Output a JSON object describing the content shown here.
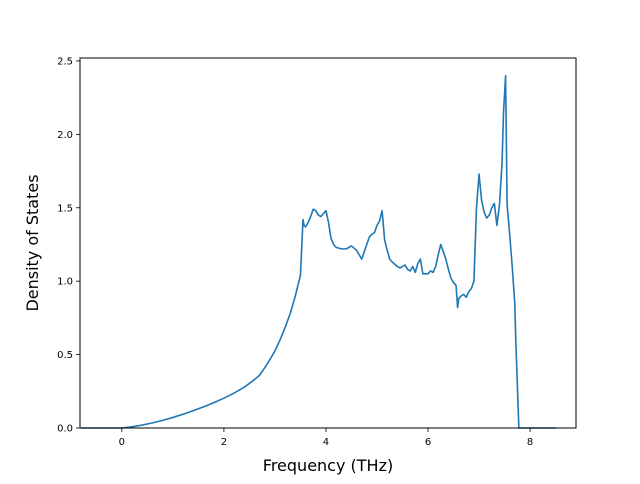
{
  "chart_data": {
    "type": "line",
    "title": "",
    "xlabel": "Frequency (THz)",
    "ylabel": "Density of States",
    "xlim": [
      -0.82,
      8.9
    ],
    "ylim": [
      0,
      2.52
    ],
    "xticks": [
      0,
      2,
      4,
      6,
      8
    ],
    "xtick_labels": [
      "0",
      "2",
      "4",
      "6",
      "8"
    ],
    "yticks": [
      0.0,
      0.5,
      1.0,
      1.5,
      2.0,
      2.5
    ],
    "ytick_labels": [
      "0.0",
      "0.5",
      "1.0",
      "1.5",
      "2.0",
      "2.5"
    ],
    "grid": false,
    "legend": "none",
    "line_color": "#1f77b4",
    "series": [
      {
        "x": [
          -0.8,
          -0.4,
          0.0,
          0.2,
          0.4,
          0.6,
          0.8,
          1.0,
          1.2,
          1.4,
          1.6,
          1.8,
          2.0,
          2.2,
          2.4,
          2.6,
          2.7,
          2.8,
          2.9,
          3.0,
          3.1,
          3.2,
          3.3,
          3.4,
          3.45,
          3.5,
          3.55,
          3.57,
          3.6,
          3.65,
          3.7,
          3.75,
          3.8,
          3.85,
          3.9,
          3.95,
          4.0,
          4.05,
          4.1,
          4.15,
          4.2,
          4.3,
          4.4,
          4.5,
          4.6,
          4.65,
          4.7,
          4.75,
          4.8,
          4.85,
          4.9,
          4.95,
          5.0,
          5.05,
          5.1,
          5.15,
          5.2,
          5.25,
          5.3,
          5.4,
          5.45,
          5.5,
          5.55,
          5.6,
          5.65,
          5.7,
          5.75,
          5.8,
          5.85,
          5.9,
          6.0,
          6.05,
          6.1,
          6.15,
          6.2,
          6.25,
          6.3,
          6.35,
          6.4,
          6.45,
          6.5,
          6.55,
          6.58,
          6.6,
          6.65,
          6.7,
          6.75,
          6.8,
          6.85,
          6.9,
          6.95,
          7.0,
          7.05,
          7.1,
          7.15,
          7.2,
          7.25,
          7.3,
          7.35,
          7.4,
          7.45,
          7.48,
          7.52,
          7.55,
          7.6,
          7.65,
          7.7,
          7.72,
          7.75,
          7.78,
          8.0,
          8.5
        ],
        "y": [
          0.0,
          0.0,
          0.0,
          0.008,
          0.02,
          0.035,
          0.052,
          0.072,
          0.094,
          0.118,
          0.144,
          0.172,
          0.203,
          0.238,
          0.278,
          0.33,
          0.36,
          0.41,
          0.465,
          0.525,
          0.6,
          0.685,
          0.78,
          0.9,
          0.97,
          1.04,
          1.42,
          1.38,
          1.37,
          1.4,
          1.44,
          1.49,
          1.48,
          1.45,
          1.44,
          1.46,
          1.48,
          1.4,
          1.29,
          1.25,
          1.23,
          1.22,
          1.22,
          1.24,
          1.21,
          1.18,
          1.15,
          1.2,
          1.25,
          1.3,
          1.32,
          1.33,
          1.38,
          1.41,
          1.48,
          1.28,
          1.21,
          1.15,
          1.13,
          1.1,
          1.09,
          1.1,
          1.11,
          1.08,
          1.07,
          1.1,
          1.06,
          1.12,
          1.15,
          1.05,
          1.05,
          1.07,
          1.06,
          1.1,
          1.18,
          1.25,
          1.2,
          1.15,
          1.08,
          1.02,
          0.99,
          0.97,
          0.82,
          0.88,
          0.9,
          0.91,
          0.89,
          0.93,
          0.95,
          1.0,
          1.5,
          1.73,
          1.55,
          1.47,
          1.43,
          1.45,
          1.5,
          1.53,
          1.38,
          1.52,
          1.8,
          2.15,
          2.4,
          1.52,
          1.32,
          1.1,
          0.85,
          0.6,
          0.3,
          0.0,
          0.0,
          0.0
        ]
      }
    ]
  }
}
